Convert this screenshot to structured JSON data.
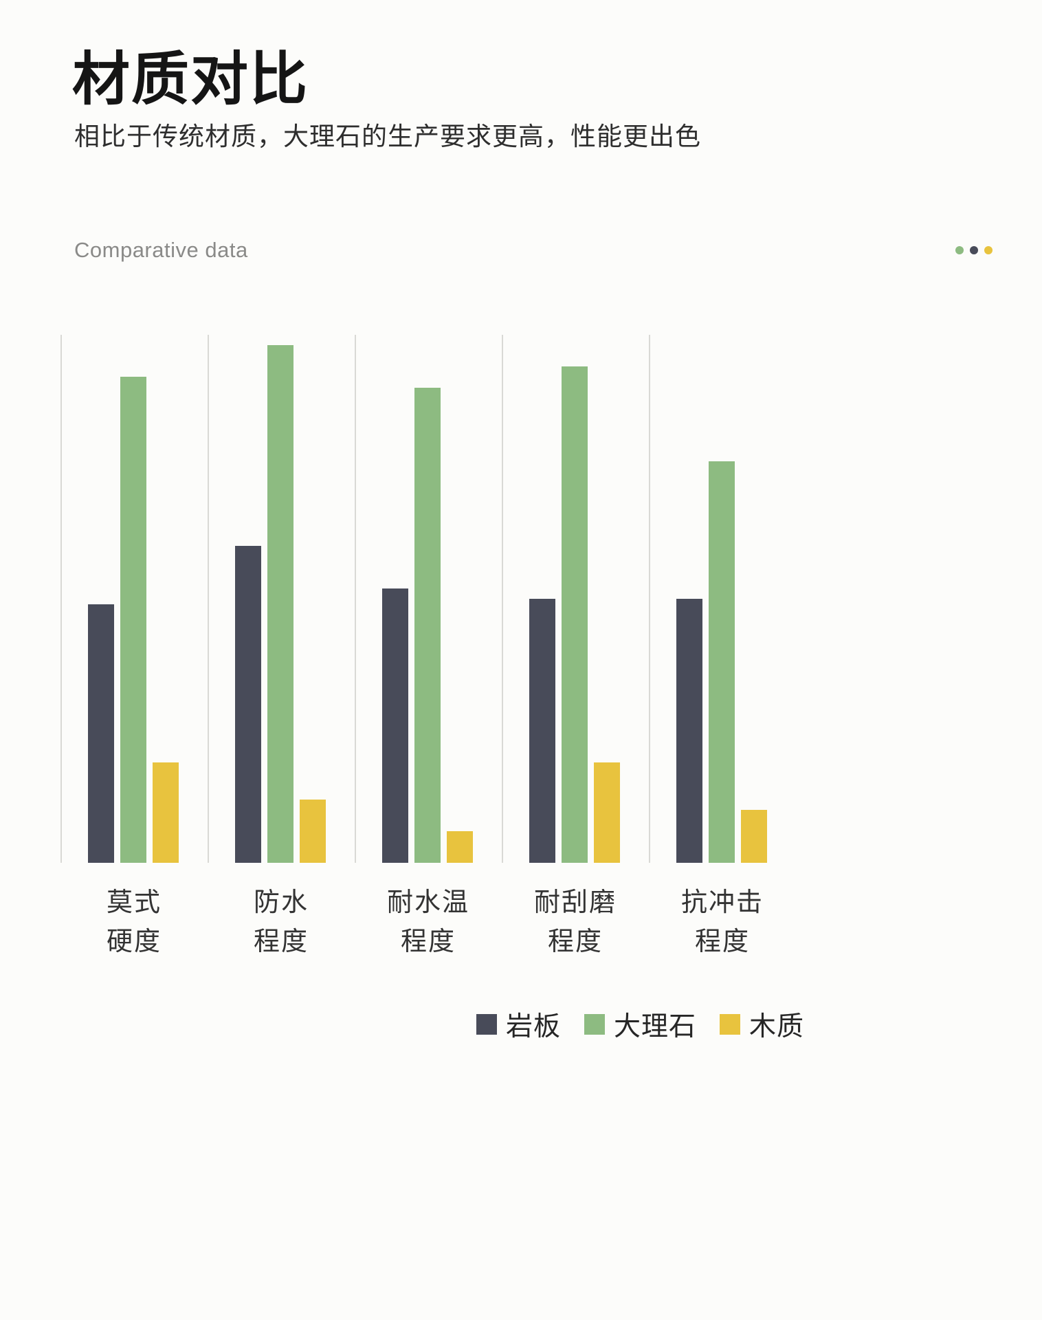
{
  "page": {
    "title": "材质对比",
    "subtitle": "相比于传统材质，大理石的生产要求更高，性能更出色",
    "section_label": "Comparative data"
  },
  "decorative_dots": {
    "colors": [
      "#8dbb81",
      "#484b59",
      "#e8c33e"
    ]
  },
  "chart_data": {
    "type": "bar",
    "title": "Comparative data",
    "categories": [
      [
        "莫式",
        "硬度"
      ],
      [
        "防水",
        "程度"
      ],
      [
        "耐水温",
        "程度"
      ],
      [
        "耐刮磨",
        "程度"
      ],
      [
        "抗冲击",
        "程度"
      ]
    ],
    "series": [
      {
        "name": "岩板",
        "color": "#484b59",
        "values": [
          4.9,
          6.0,
          5.2,
          5.0,
          5.0
        ]
      },
      {
        "name": "大理石",
        "color": "#8dbb81",
        "values": [
          9.2,
          9.8,
          9.0,
          9.4,
          7.6
        ]
      },
      {
        "name": "木质",
        "color": "#e8c33e",
        "values": [
          1.9,
          1.2,
          0.6,
          1.9,
          1.0
        ]
      }
    ],
    "ylim": [
      0,
      10
    ],
    "xlabel": "",
    "ylabel": "",
    "grid": "vertical-separators",
    "legend_position": "bottom-right"
  }
}
